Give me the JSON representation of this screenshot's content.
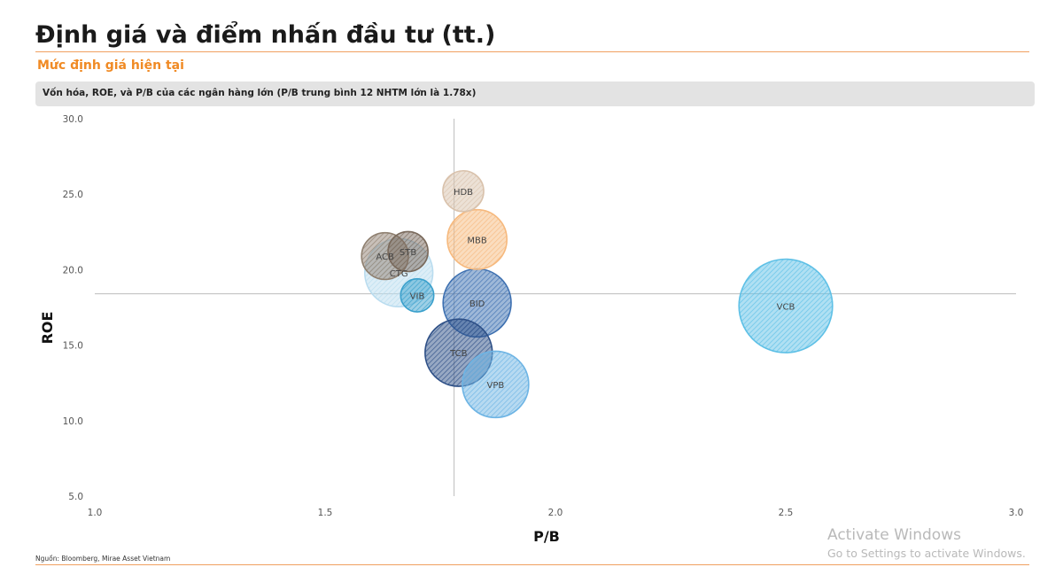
{
  "page": {
    "title": "Định giá và điểm nhấn đầu tư (tt.)",
    "section_title": "Mức định giá hiện tại",
    "source": "Nguồn: Bloomberg, Mirae Asset Vietnam"
  },
  "colors": {
    "title_rule": "#f0a060",
    "section_title": "#f08a24",
    "caption_bar": "#e3e3e3"
  },
  "watermark": {
    "title": "Activate Windows",
    "subtitle": "Go to Settings to activate Windows."
  },
  "chart_data": {
    "type": "scatter",
    "variant": "bubble",
    "title": "Vốn hóa, ROE, và P/B của các ngân hàng lớn (P/B trung bình 12 NHTM lớn là 1.78x)",
    "xlabel": "P/B",
    "ylabel": "ROE",
    "xlim": [
      1.0,
      3.0
    ],
    "ylim": [
      5.0,
      30.0
    ],
    "x_ticks": [
      "1.0",
      "1.5",
      "2.0",
      "2.5",
      "3.0"
    ],
    "y_ticks": [
      "5.0",
      "10.0",
      "15.0",
      "20.0",
      "25.0",
      "30.0"
    ],
    "grid": false,
    "legend": "none",
    "reference_lines": {
      "x": 1.78,
      "y": 18.4
    },
    "points": [
      {
        "label": "CTG",
        "x": 1.66,
        "y": 19.8,
        "size": 0.8,
        "color": "#b9dcef"
      },
      {
        "label": "HDB",
        "x": 1.8,
        "y": 25.2,
        "size": 0.48,
        "color": "#d9c2ac"
      },
      {
        "label": "MBB",
        "x": 1.83,
        "y": 22.0,
        "size": 0.7,
        "color": "#f6b97e"
      },
      {
        "label": "ACB",
        "x": 1.63,
        "y": 20.9,
        "size": 0.55,
        "color": "#8f8070"
      },
      {
        "label": "STB",
        "x": 1.68,
        "y": 21.2,
        "size": 0.47,
        "color": "#7a6a5c"
      },
      {
        "label": "VIB",
        "x": 1.7,
        "y": 18.3,
        "size": 0.39,
        "color": "#3aa0cc"
      },
      {
        "label": "BID",
        "x": 1.83,
        "y": 17.8,
        "size": 0.8,
        "color": "#3c6fb0"
      },
      {
        "label": "TCB",
        "x": 1.79,
        "y": 14.5,
        "size": 0.79,
        "color": "#2d4f86"
      },
      {
        "label": "VPB",
        "x": 1.87,
        "y": 12.4,
        "size": 0.78,
        "color": "#6db4e4"
      },
      {
        "label": "VCB",
        "x": 2.5,
        "y": 17.6,
        "size": 1.1,
        "color": "#5ec0e6"
      }
    ]
  }
}
